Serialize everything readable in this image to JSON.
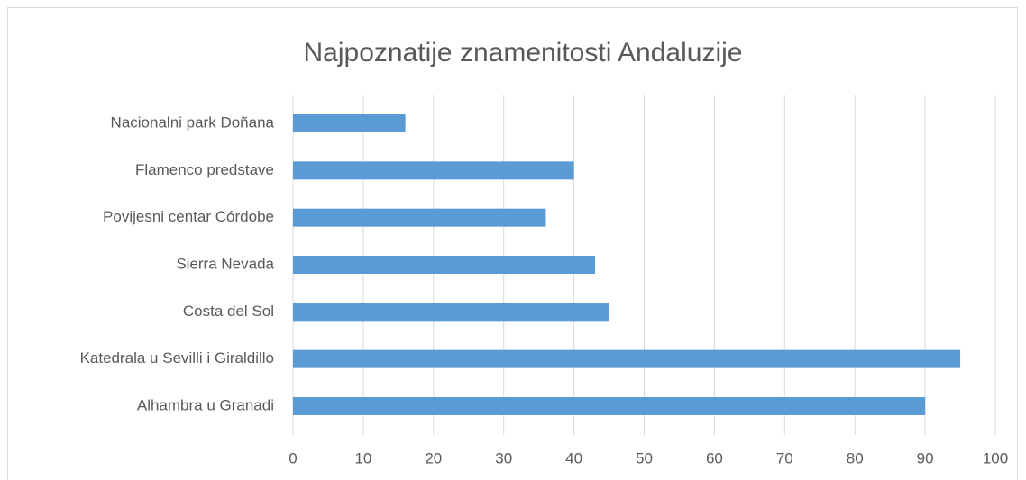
{
  "chart_data": {
    "type": "bar",
    "orientation": "horizontal",
    "title": "Najpoznatije znamenitosti Andaluzije",
    "categories": [
      "Nacionalni park Doñana",
      "Flamenco predstave",
      "Povijesni centar Córdobe",
      "Sierra Nevada",
      "Costa del Sol",
      "Katedrala u Sevilli i Giraldillo",
      "Alhambra u Granadi"
    ],
    "values": [
      16,
      40,
      36,
      43,
      45,
      95,
      90
    ],
    "color": "#5b9bd5",
    "xlim": [
      0,
      100
    ],
    "xticks": [
      0,
      10,
      20,
      30,
      40,
      50,
      60,
      70,
      80,
      90,
      100
    ],
    "grid": true
  }
}
